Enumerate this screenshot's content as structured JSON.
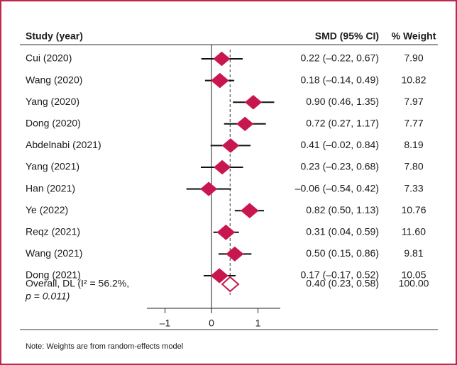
{
  "chart_data": {
    "type": "forest",
    "headers": [
      "Study (year)",
      "SMD (95% CI)",
      "% Weight"
    ],
    "categories": [
      "Cui (2020)",
      "Wang (2020)",
      "Yang (2020)",
      "Dong (2020)",
      "Abdelnabi (2021)",
      "Yang (2021)",
      "Han (2021)",
      "Ye (2022)",
      "Reqz (2021)",
      "Wang (2021)",
      "Dong (2021)"
    ],
    "values": [
      0.22,
      0.18,
      0.9,
      0.72,
      0.41,
      0.23,
      -0.06,
      0.82,
      0.31,
      0.5,
      0.17
    ],
    "lower": [
      -0.22,
      -0.14,
      0.46,
      0.27,
      -0.02,
      -0.23,
      -0.54,
      0.5,
      0.04,
      0.15,
      -0.17
    ],
    "upper": [
      0.67,
      0.49,
      1.35,
      1.17,
      0.84,
      0.68,
      0.42,
      1.13,
      0.59,
      0.86,
      0.52
    ],
    "value_labels": [
      "0.22 (–0.22, 0.67)",
      "0.18 (–0.14, 0.49)",
      "0.90 (0.46, 1.35)",
      "0.72 (0.27, 1.17)",
      "0.41 (–0.02, 0.84)",
      "0.23 (–0.23, 0.68)",
      "–0.06 (–0.54, 0.42)",
      "0.82 (0.50, 1.13)",
      "0.31 (0.04, 0.59)",
      "0.50 (0.15, 0.86)",
      "0.17 (–0.17, 0.52)"
    ],
    "weights": [
      7.9,
      10.82,
      7.97,
      7.77,
      8.19,
      7.8,
      7.33,
      10.76,
      11.6,
      9.81,
      10.05
    ],
    "weight_labels": [
      "7.90",
      "10.82",
      "7.97",
      "7.77",
      "8.19",
      "7.80",
      "7.33",
      "10.76",
      "11.60",
      "9.81",
      "10.05"
    ],
    "overall": {
      "label": [
        "Overall, DL (I² = 56.2%,",
        "p = 0.011)"
      ],
      "value": 0.4,
      "lower": 0.23,
      "upper": 0.58,
      "value_label": "0.40 (0.23, 0.58)",
      "weight": 100,
      "weight_label": "100.00"
    },
    "color": "#c8174e",
    "xlim": [
      -1.39,
      1.48
    ],
    "xticks": [
      -1,
      0,
      1
    ],
    "xtick_labels": [
      "–1",
      "0",
      "1"
    ],
    "note": "Note: Weights are from random-effects model"
  }
}
